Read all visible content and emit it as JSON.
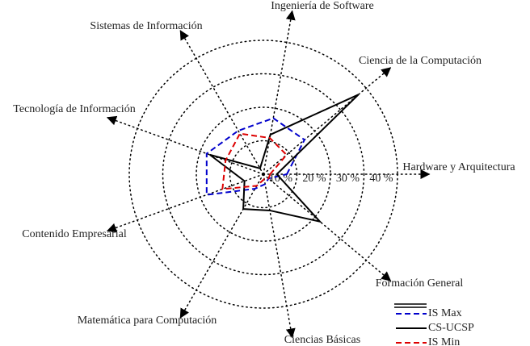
{
  "chart_data": {
    "type": "radar",
    "categories": [
      "Hardware y Arquitectura",
      "Ciencia de la Computación",
      "Ingeniería de Software",
      "Sistemas de Información",
      "Tecnología de Información",
      "Contenido Empresarial",
      "Matemática para Computación",
      "Ciencias Básicas",
      "Formación General"
    ],
    "series": [
      {
        "name": "IS Max",
        "color": "#0000cc",
        "dash": "dashed",
        "values": [
          7,
          16,
          17,
          15,
          18,
          18,
          5,
          3,
          2
        ]
      },
      {
        "name": "CS-UCSP",
        "color": "#000000",
        "dash": "solid",
        "values": [
          4,
          37,
          12,
          2,
          17,
          6,
          12,
          11,
          22
        ]
      },
      {
        "name": "IS Min",
        "color": "#dd0000",
        "dash": "dashed",
        "values": [
          2,
          9,
          11,
          14,
          12,
          13,
          4,
          1.5,
          2
        ]
      }
    ],
    "rlim": [
      0,
      40
    ],
    "rticks": [
      {
        "value": 10,
        "label": "10 %"
      },
      {
        "value": 20,
        "label": "20 %"
      },
      {
        "value": 30,
        "label": "30 %"
      },
      {
        "value": 40,
        "label": "40 %"
      }
    ],
    "grid": true,
    "legend": "lower right"
  }
}
